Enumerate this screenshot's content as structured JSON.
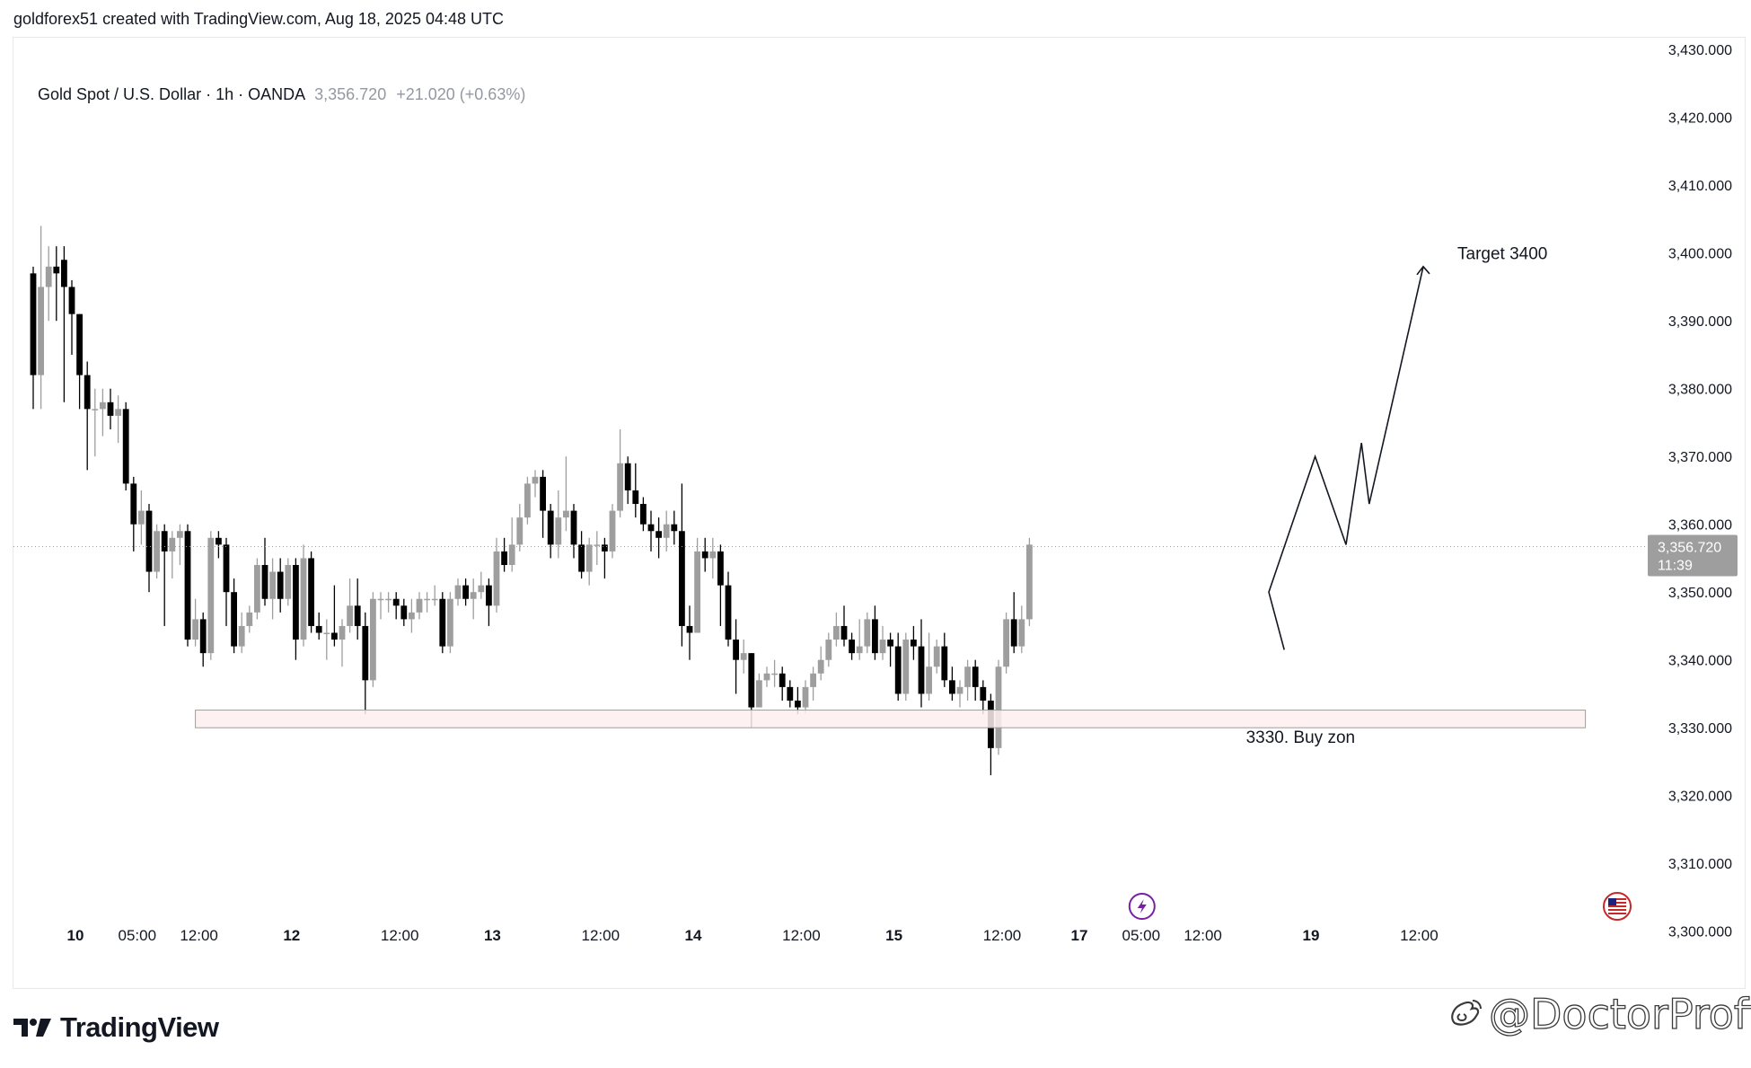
{
  "credit": "goldforex51 created with TradingView.com, Aug 18, 2025 04:48 UTC",
  "legend": {
    "symbol": "Gold Spot / U.S. Dollar · 1h · OANDA",
    "price": "3,356.720",
    "change": "+21.020 (+0.63%)"
  },
  "price_label": {
    "value": "3,356.720",
    "countdown": "11:39"
  },
  "brand": {
    "name": "TradingView"
  },
  "watermark": {
    "text": "@DoctorProfit"
  },
  "colors": {
    "up": "#9e9e9e",
    "down": "#000000",
    "zone_fill": "#fdeeee",
    "zone_border": "#9e9e9e",
    "price_badge": "#9e9e9e",
    "event_icon": "#7b1fa2"
  },
  "icons": {
    "event": "lightning-icon",
    "country": "us-flag-icon",
    "watermark": "weibo-logo-icon",
    "brand": "tradingview-logo-icon"
  },
  "chart_data": {
    "type": "candlestick",
    "timeframe": "1h",
    "ylim": [
      3295,
      3432
    ],
    "y_ticks": [
      3430,
      3420,
      3410,
      3400,
      3390,
      3380,
      3370,
      3360,
      3350,
      3340,
      3330,
      3320,
      3310,
      3300
    ],
    "y_tick_labels": [
      "3,430.000",
      "3,420.000",
      "3,410.000",
      "3,400.000",
      "3,390.000",
      "3,380.000",
      "3,370.000",
      "3,360.000",
      "3,350.000",
      "3,340.000",
      "3,330.000",
      "3,320.000",
      "3,310.000",
      "3,300.000"
    ],
    "x_ticks": [
      {
        "label": "10",
        "bar": 5,
        "bold": true
      },
      {
        "label": "05:00",
        "bar": 13
      },
      {
        "label": "12:00",
        "bar": 21
      },
      {
        "label": "12",
        "bar": 33,
        "bold": true
      },
      {
        "label": "12:00",
        "bar": 47
      },
      {
        "label": "13",
        "bar": 59,
        "bold": true
      },
      {
        "label": "12:00",
        "bar": 73
      },
      {
        "label": "14",
        "bar": 85,
        "bold": true
      },
      {
        "label": "12:00",
        "bar": 99
      },
      {
        "label": "15",
        "bar": 111,
        "bold": true
      },
      {
        "label": "12:00",
        "bar": 125
      },
      {
        "label": "17",
        "bar": 135,
        "bold": true
      },
      {
        "label": "05:00",
        "bar": 143
      },
      {
        "label": "12:00",
        "bar": 151
      },
      {
        "label": "19",
        "bar": 165,
        "bold": true
      },
      {
        "label": "12:00",
        "bar": 179
      }
    ],
    "candles": [
      [
        3397,
        3382,
        3398,
        3377
      ],
      [
        3382,
        3395,
        3404,
        3377
      ],
      [
        3395,
        3398,
        3401,
        3390
      ],
      [
        3398,
        3397,
        3401,
        3390
      ],
      [
        3399,
        3395,
        3401,
        3378
      ],
      [
        3395,
        3391,
        3396,
        3385
      ],
      [
        3391,
        3382,
        3391,
        3377
      ],
      [
        3382,
        3377,
        3384,
        3368
      ],
      [
        3377,
        3377,
        3380,
        3370
      ],
      [
        3377,
        3378,
        3380,
        3373
      ],
      [
        3378,
        3376,
        3380,
        3374
      ],
      [
        3376,
        3377,
        3379,
        3372
      ],
      [
        3377,
        3366,
        3378,
        3365
      ],
      [
        3366,
        3360,
        3367,
        3356
      ],
      [
        3360,
        3362,
        3365,
        3357
      ],
      [
        3362,
        3353,
        3363,
        3350
      ],
      [
        3353,
        3359,
        3360,
        3352
      ],
      [
        3359,
        3356,
        3360,
        3345
      ],
      [
        3356,
        3358,
        3359,
        3352
      ],
      [
        3358,
        3359,
        3360,
        3354
      ],
      [
        3359,
        3343,
        3360,
        3342
      ],
      [
        3343,
        3346,
        3349,
        3342
      ],
      [
        3346,
        3341,
        3347,
        3339
      ],
      [
        3341,
        3358,
        3359,
        3340
      ],
      [
        3358,
        3357,
        3359,
        3355
      ],
      [
        3357,
        3350,
        3358,
        3345
      ],
      [
        3350,
        3342,
        3352,
        3341
      ],
      [
        3342,
        3345,
        3347,
        3341
      ],
      [
        3345,
        3347,
        3348,
        3344
      ],
      [
        3347,
        3354,
        3355,
        3346
      ],
      [
        3354,
        3349,
        3358,
        3348
      ],
      [
        3349,
        3353,
        3355,
        3346
      ],
      [
        3353,
        3349,
        3355,
        3347
      ],
      [
        3349,
        3354,
        3355,
        3348
      ],
      [
        3354,
        3343,
        3355,
        3340
      ],
      [
        3343,
        3355,
        3357,
        3342
      ],
      [
        3355,
        3345,
        3356,
        3344
      ],
      [
        3345,
        3344,
        3347,
        3343
      ],
      [
        3344,
        3344,
        3346,
        3340
      ],
      [
        3344,
        3343,
        3351,
        3342
      ],
      [
        3343,
        3345,
        3346,
        3339
      ],
      [
        3345,
        3348,
        3352,
        3344
      ],
      [
        3348,
        3345,
        3352,
        3343
      ],
      [
        3345,
        3337,
        3347,
        3332
      ],
      [
        3337,
        3349,
        3350,
        3336
      ],
      [
        3349,
        3349,
        3350,
        3346
      ],
      [
        3349,
        3349,
        3350,
        3347
      ],
      [
        3349,
        3348,
        3350,
        3346
      ],
      [
        3348,
        3346,
        3349,
        3345
      ],
      [
        3346,
        3347,
        3349,
        3344
      ],
      [
        3347,
        3349,
        3350,
        3346
      ],
      [
        3349,
        3349,
        3350,
        3347
      ],
      [
        3349,
        3349,
        3351,
        3348
      ],
      [
        3349,
        3342,
        3350,
        3341
      ],
      [
        3342,
        3349,
        3350,
        3341
      ],
      [
        3349,
        3351,
        3352,
        3348
      ],
      [
        3351,
        3349,
        3352,
        3348
      ],
      [
        3349,
        3350,
        3352,
        3346
      ],
      [
        3350,
        3351,
        3353,
        3349
      ],
      [
        3351,
        3348,
        3352,
        3345
      ],
      [
        3348,
        3356,
        3358,
        3347
      ],
      [
        3356,
        3354,
        3358,
        3353
      ],
      [
        3354,
        3357,
        3361,
        3353
      ],
      [
        3357,
        3361,
        3363,
        3356
      ],
      [
        3361,
        3366,
        3367,
        3360
      ],
      [
        3366,
        3367,
        3368,
        3364
      ],
      [
        3367,
        3362,
        3368,
        3358
      ],
      [
        3362,
        3357,
        3363,
        3355
      ],
      [
        3357,
        3361,
        3365,
        3355
      ],
      [
        3361,
        3362,
        3370,
        3359
      ],
      [
        3362,
        3357,
        3363,
        3355
      ],
      [
        3357,
        3353,
        3359,
        3352
      ],
      [
        3353,
        3357,
        3358,
        3351
      ],
      [
        3357,
        3357,
        3359,
        3354
      ],
      [
        3357,
        3356,
        3358,
        3352
      ],
      [
        3356,
        3362,
        3363,
        3355
      ],
      [
        3362,
        3369,
        3374,
        3361
      ],
      [
        3369,
        3365,
        3370,
        3363
      ],
      [
        3365,
        3363,
        3369,
        3361
      ],
      [
        3363,
        3360,
        3364,
        3359
      ],
      [
        3360,
        3359,
        3362,
        3356
      ],
      [
        3359,
        3358,
        3361,
        3355
      ],
      [
        3358,
        3360,
        3362,
        3356
      ],
      [
        3360,
        3359,
        3362,
        3357
      ],
      [
        3359,
        3345,
        3366,
        3342
      ],
      [
        3345,
        3344,
        3348,
        3340
      ],
      [
        3344,
        3356,
        3358,
        3344
      ],
      [
        3356,
        3355,
        3358,
        3353
      ],
      [
        3355,
        3356,
        3358,
        3352
      ],
      [
        3356,
        3351,
        3357,
        3345
      ],
      [
        3351,
        3343,
        3353,
        3342
      ],
      [
        3343,
        3340,
        3346,
        3335
      ],
      [
        3340,
        3341,
        3343,
        3338
      ],
      [
        3341,
        3333,
        3341,
        3330
      ],
      [
        3333,
        3337,
        3338,
        3333
      ],
      [
        3337,
        3338,
        3339,
        3336
      ],
      [
        3338,
        3338,
        3340,
        3336
      ],
      [
        3338,
        3336,
        3339,
        3334
      ],
      [
        3336,
        3334,
        3337,
        3333
      ],
      [
        3334,
        3333,
        3336,
        3332
      ],
      [
        3333,
        3336,
        3337,
        3332
      ],
      [
        3336,
        3338,
        3339,
        3334
      ],
      [
        3338,
        3340,
        3342,
        3337
      ],
      [
        3340,
        3343,
        3344,
        3339
      ],
      [
        3343,
        3345,
        3347,
        3342
      ],
      [
        3345,
        3343,
        3348,
        3342
      ],
      [
        3343,
        3341,
        3344,
        3340
      ],
      [
        3341,
        3342,
        3346,
        3340
      ],
      [
        3342,
        3346,
        3347,
        3341
      ],
      [
        3346,
        3341,
        3348,
        3340
      ],
      [
        3341,
        3343,
        3345,
        3340
      ],
      [
        3343,
        3342,
        3344,
        3339
      ],
      [
        3342,
        3335,
        3344,
        3334
      ],
      [
        3335,
        3343,
        3344,
        3334
      ],
      [
        3343,
        3342,
        3345,
        3340
      ],
      [
        3342,
        3335,
        3346,
        3333
      ],
      [
        3335,
        3339,
        3344,
        3334
      ],
      [
        3339,
        3342,
        3343,
        3338
      ],
      [
        3342,
        3337,
        3344,
        3336
      ],
      [
        3337,
        3335,
        3339,
        3334
      ],
      [
        3335,
        3336,
        3337,
        3333
      ],
      [
        3336,
        3339,
        3340,
        3334
      ],
      [
        3339,
        3336,
        3340,
        3334
      ],
      [
        3336,
        3334,
        3337,
        3332
      ],
      [
        3334,
        3327,
        3335,
        3323
      ],
      [
        3327,
        3339,
        3340,
        3326
      ],
      [
        3339,
        3346,
        3347,
        3338
      ],
      [
        3346,
        3342,
        3350,
        3341
      ],
      [
        3342,
        3346,
        3348,
        3341
      ],
      [
        3346,
        3357,
        3358,
        3345
      ]
    ],
    "last_price": 3356.72,
    "zone": {
      "label": "3330. Buy zon",
      "from_bar": 21,
      "to_bar": 201,
      "low": 3330,
      "high": 3332.6
    },
    "projection": [
      {
        "bar": 162,
        "price": 3341.5
      },
      {
        "bar": 160,
        "price": 3350
      },
      {
        "bar": 166,
        "price": 3370
      },
      {
        "bar": 170,
        "price": 3357
      },
      {
        "bar": 172,
        "price": 3372
      },
      {
        "bar": 173,
        "price": 3363
      },
      {
        "bar": 180,
        "price": 3398
      }
    ],
    "target_label": "Target 3400",
    "target_price": 3400,
    "event_bar": 143
  }
}
